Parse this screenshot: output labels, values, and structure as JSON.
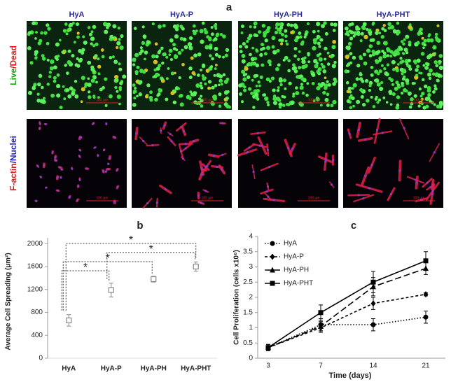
{
  "panel_a": {
    "label": "a",
    "columns": [
      "HyA",
      "HyA-P",
      "HyA-PH",
      "HyA-PHT"
    ],
    "rows": [
      {
        "parts": [
          {
            "text": "Live",
            "color": "#1fa01f"
          },
          {
            "text": "/Dead",
            "color": "#e01818"
          }
        ]
      },
      {
        "parts": [
          {
            "text": "F-actin",
            "color": "#e01818"
          },
          {
            "text": "/Nuclei",
            "color": "#2424c0"
          }
        ]
      }
    ],
    "scale_bar": "100 µm"
  },
  "chart_data": [
    {
      "type": "scatter",
      "title": "b",
      "ylabel": "Average Cell Spreading (µm²)",
      "categories": [
        "HyA",
        "HyA-P",
        "HyA-PH",
        "HyA-PHT"
      ],
      "values": [
        660,
        1190,
        1380,
        1600
      ],
      "errors": [
        100,
        120,
        50,
        80
      ],
      "color": "#888888",
      "ylim": [
        0,
        2100
      ],
      "yticks": [
        0,
        400,
        800,
        1200,
        1600,
        2000
      ],
      "significance": [
        {
          "pair": [
            0,
            1
          ],
          "label": "*"
        },
        {
          "pair": [
            0,
            2
          ],
          "label": "*"
        },
        {
          "pair": [
            1,
            3
          ],
          "label": "*"
        },
        {
          "pair": [
            0,
            3
          ],
          "label": "*"
        }
      ]
    },
    {
      "type": "line",
      "title": "c",
      "xlabel": "Time (days)",
      "ylabel": "Cell Proliferation (cells x10⁶)",
      "categories": [
        "3",
        "7",
        "14",
        "21"
      ],
      "ylim": [
        0,
        4
      ],
      "yticks": [
        0,
        0.5,
        1,
        1.5,
        2,
        2.5,
        3,
        3.5,
        4
      ],
      "legend": "upper left",
      "series": [
        {
          "name": "HyA",
          "color": "#000000",
          "dash": "dotted",
          "marker": "circle",
          "values": [
            0.35,
            1.1,
            1.1,
            1.35
          ],
          "errors": [
            0.1,
            0.2,
            0.2,
            0.2
          ]
        },
        {
          "name": "HyA-P",
          "color": "#000000",
          "dash": "short",
          "marker": "diamond",
          "values": [
            0.35,
            1.0,
            1.8,
            2.1
          ],
          "errors": [
            0.1,
            0.15,
            0.2,
            0.05
          ]
        },
        {
          "name": "HyA-PH",
          "color": "#000000",
          "dash": "long",
          "marker": "triangle",
          "values": [
            0.35,
            1.05,
            2.35,
            2.95
          ],
          "errors": [
            0.1,
            0.15,
            0.3,
            0.2
          ]
        },
        {
          "name": "HyA-PHT",
          "color": "#000000",
          "dash": "solid",
          "marker": "square",
          "values": [
            0.35,
            1.5,
            2.5,
            3.2
          ],
          "errors": [
            0.1,
            0.25,
            0.35,
            0.3
          ]
        }
      ]
    }
  ]
}
